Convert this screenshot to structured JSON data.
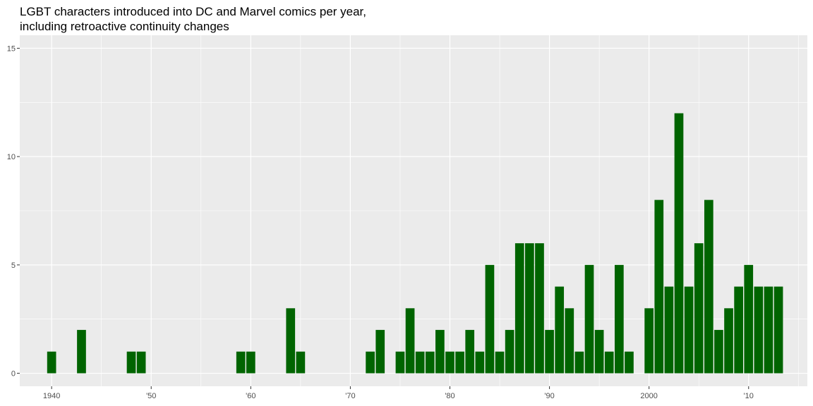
{
  "chart_data": {
    "type": "bar",
    "title": "LGBT characters introduced into DC and Marvel comics per year,\nincluding retroactive continuity changes",
    "xlabel": "",
    "ylabel": "",
    "x_tick_values": [
      1940,
      1950,
      1960,
      1970,
      1980,
      1990,
      2000,
      2010
    ],
    "x_tick_labels": [
      "1940",
      "'50",
      "'60",
      "'70",
      "'80",
      "'90",
      "2000",
      "'10"
    ],
    "y_ticks": [
      0,
      5,
      10,
      15
    ],
    "xlim": [
      1936.8,
      2015.9
    ],
    "ylim": [
      -0.6,
      15.6
    ],
    "grid": true,
    "bar_color": "#006400",
    "panel_color": "#ebebeb",
    "x": [
      1940,
      1943,
      1948,
      1949,
      1959,
      1960,
      1964,
      1965,
      1972,
      1973,
      1975,
      1976,
      1977,
      1978,
      1979,
      1980,
      1981,
      1982,
      1983,
      1984,
      1985,
      1986,
      1987,
      1988,
      1989,
      1990,
      1991,
      1992,
      1993,
      1994,
      1995,
      1996,
      1997,
      1998,
      2000,
      2001,
      2002,
      2003,
      2004,
      2005,
      2006,
      2007,
      2008,
      2009,
      2010,
      2011,
      2012,
      2013
    ],
    "values": [
      1,
      2,
      1,
      1,
      1,
      1,
      3,
      1,
      1,
      2,
      1,
      3,
      1,
      1,
      2,
      1,
      1,
      2,
      1,
      5,
      1,
      2,
      6,
      6,
      6,
      2,
      4,
      3,
      1,
      5,
      2,
      1,
      5,
      1,
      3,
      8,
      4,
      12,
      4,
      6,
      8,
      2,
      3,
      4,
      5,
      4,
      4,
      4
    ]
  }
}
